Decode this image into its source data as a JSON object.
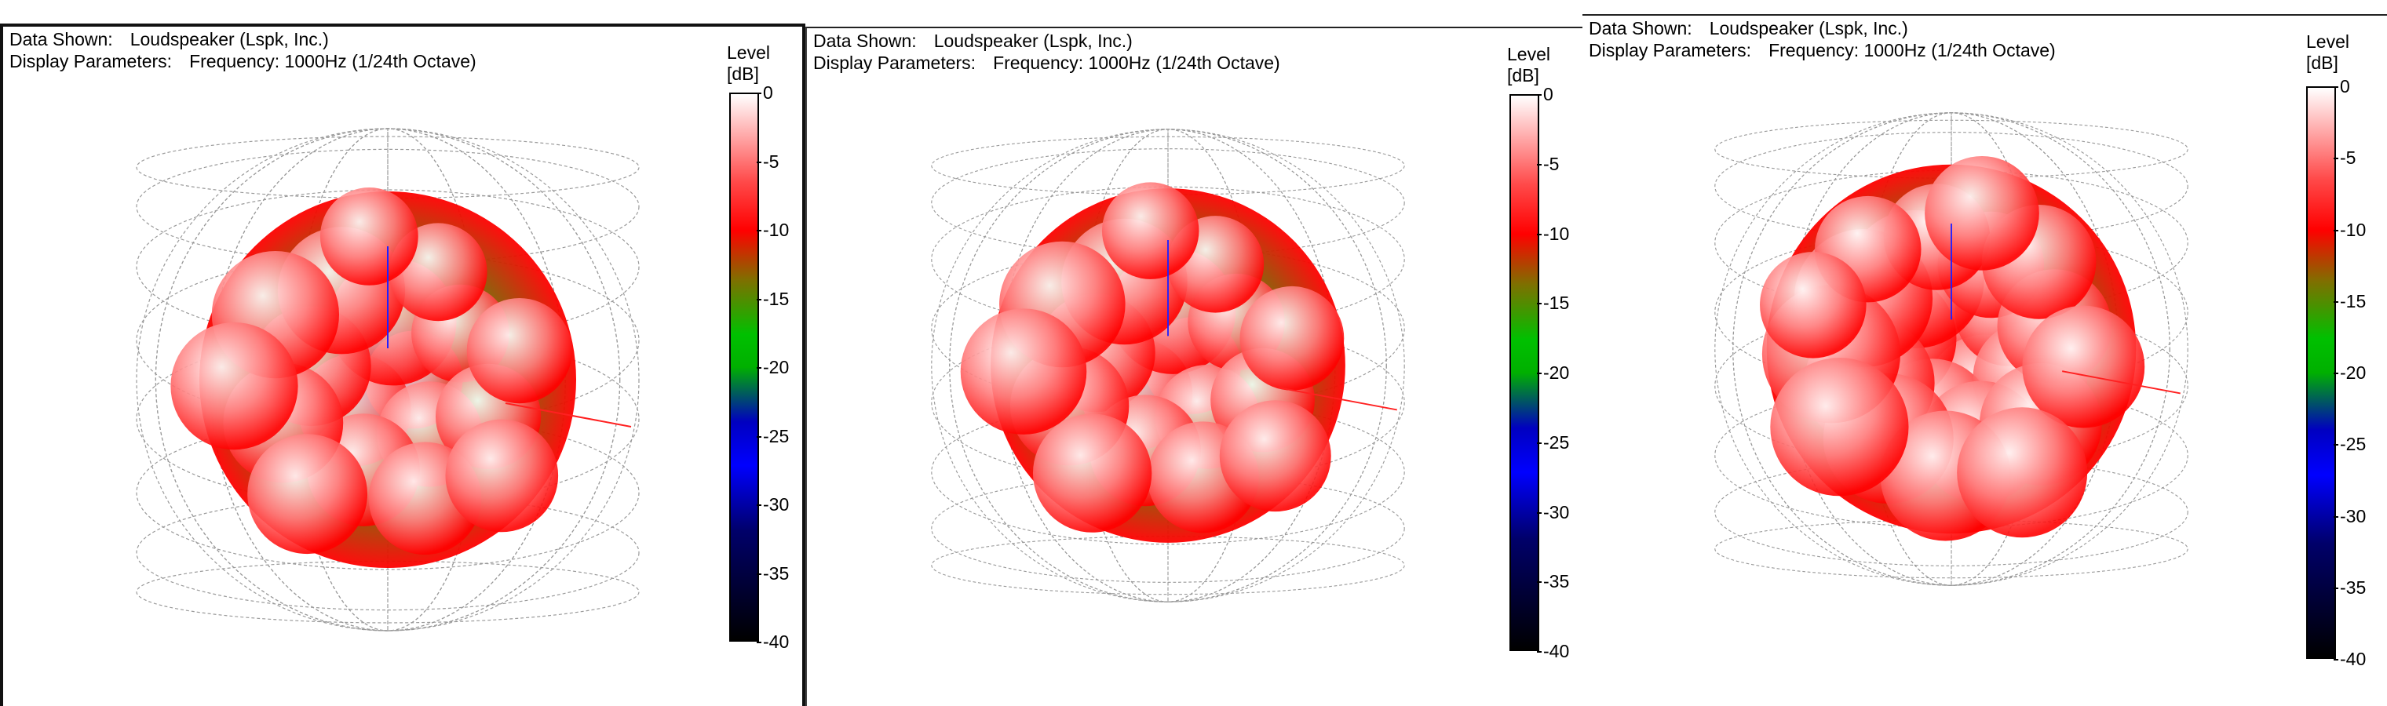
{
  "panels": [
    {
      "data_shown_label": "Data Shown:",
      "data_shown_value": "Loudspeaker (Lspk, Inc.)",
      "display_params_label": "Display Parameters:",
      "display_params_value": "Frequency: 1000Hz (1/24th Octave)",
      "legend_title_line1": "Level",
      "legend_title_line2": "[dB]",
      "legend_ticks": [
        "0",
        "-5",
        "-10",
        "-15",
        "-20",
        "-25",
        "-30",
        "-35",
        "-40"
      ],
      "sphere_style": "low-balloon"
    },
    {
      "data_shown_label": "Data Shown:",
      "data_shown_value": "Loudspeaker (Lspk, Inc.)",
      "display_params_label": "Display Parameters:",
      "display_params_value": "Frequency: 1000Hz (1/24th Octave)",
      "legend_title_line1": "Level",
      "legend_title_line2": "[dB]",
      "legend_ticks": [
        "0",
        "-5",
        "-10",
        "-15",
        "-20",
        "-25",
        "-30",
        "-35",
        "-40"
      ],
      "sphere_style": "mid-balloon"
    },
    {
      "data_shown_label": "Data Shown:",
      "data_shown_value": "Loudspeaker (Lspk, Inc.)",
      "display_params_label": "Display Parameters:",
      "display_params_value": "Frequency: 1000Hz (1/24th Octave)",
      "legend_title_line1": "Level",
      "legend_title_line2": "[dB]",
      "legend_ticks": [
        "0",
        "-5",
        "-10",
        "-15",
        "-20",
        "-25",
        "-30",
        "-35",
        "-40"
      ],
      "sphere_style": "high-balloon"
    }
  ],
  "colors": {
    "hot": "#ff0000",
    "peak": "#ffffff",
    "mid": "#00c000",
    "low": "#0000ff",
    "floor": "#000000",
    "grid": "#9a9a9a"
  }
}
